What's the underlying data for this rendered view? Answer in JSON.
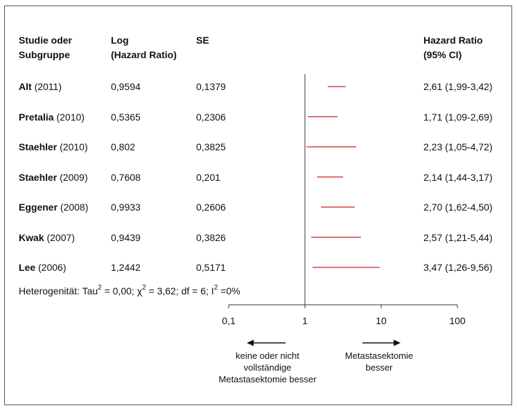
{
  "header": {
    "col_study_line1": "Studie oder",
    "col_study_line2": "Subgruppe",
    "col_log_line1": "Log",
    "col_log_line2": "(Hazard Ratio)",
    "col_se": "SE",
    "col_hr_line1": "Hazard Ratio",
    "col_hr_line2": "(95% CI)"
  },
  "chart_data": {
    "type": "forest",
    "x_scale": "log",
    "xlim": [
      0.1,
      100
    ],
    "x_ticks": [
      "0,1",
      "1",
      "10",
      "100"
    ],
    "x_tick_values": [
      0.1,
      1,
      10,
      100
    ],
    "reference_line": 1,
    "marker_color": "#cc1f27",
    "studies": [
      {
        "name": "Alt",
        "year": "(2011)",
        "log_hr": "0,9594",
        "se": "0,1379",
        "hr_ci": "2,61 (1,99-3,42)",
        "hr": 2.61,
        "lo": 1.99,
        "hi": 3.42
      },
      {
        "name": "Pretalia",
        "year": "(2010)",
        "log_hr": "0,5365",
        "se": "0,2306",
        "hr_ci": "1,71 (1,09-2,69)",
        "hr": 1.71,
        "lo": 1.09,
        "hi": 2.69
      },
      {
        "name": "Staehler",
        "year": "(2010)",
        "log_hr": "0,802",
        "se": "0,3825",
        "hr_ci": "2,23 (1,05-4,72)",
        "hr": 2.23,
        "lo": 1.05,
        "hi": 4.72
      },
      {
        "name": "Staehler",
        "year": "(2009)",
        "log_hr": "0,7608",
        "se": "0,201",
        "hr_ci": "2,14 (1,44-3,17)",
        "hr": 2.14,
        "lo": 1.44,
        "hi": 3.17
      },
      {
        "name": "Eggener",
        "year": "(2008)",
        "log_hr": "0,9933",
        "se": "0,2606",
        "hr_ci": "2,70 (1,62-4,50)",
        "hr": 2.7,
        "lo": 1.62,
        "hi": 4.5
      },
      {
        "name": "Kwak",
        "year": "(2007)",
        "log_hr": "0,9439",
        "se": "0,3826",
        "hr_ci": "2,57 (1,21-5,44)",
        "hr": 2.57,
        "lo": 1.21,
        "hi": 5.44
      },
      {
        "name": "Lee",
        "year": "(2006)",
        "log_hr": "1,2442",
        "se": "0,5171",
        "hr_ci": "3,47 (1,26-9,56)",
        "hr": 3.47,
        "lo": 1.26,
        "hi": 9.56
      }
    ],
    "heterogeneity": {
      "prefix": "Heterogenität: Tau",
      "tau_value": " = 0,00; χ",
      "chi_value": " = 3,62; df = 6; I",
      "i_value": " =0%",
      "sup": "2"
    },
    "direction_left": "keine oder nicht vollständige Metastasektomie besser",
    "direction_right": "Metastasektomie besser"
  }
}
